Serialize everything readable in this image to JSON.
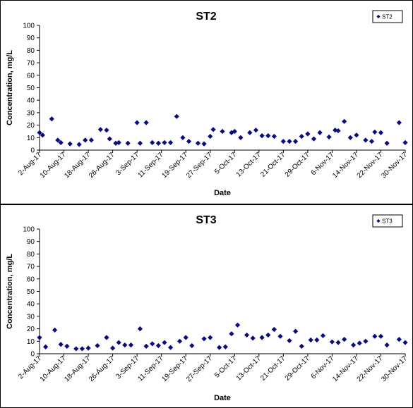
{
  "chart_data": [
    {
      "type": "scatter",
      "title": "ST2",
      "xlabel": "Date",
      "ylabel": "Concentration, mg/L",
      "ylim": [
        0,
        100
      ],
      "yticks": [
        0,
        10,
        20,
        30,
        40,
        50,
        60,
        70,
        80,
        90,
        100
      ],
      "xtick_labels": [
        "2-Aug-17",
        "10-Aug-17",
        "18-Aug-17",
        "26-Aug-17",
        "3-Sep-17",
        "11-Sep-17",
        "19-Sep-17",
        "27-Sep-17",
        "5-Oct-17",
        "13-Oct-17",
        "21-Oct-17",
        "29-Oct-17",
        "6-Nov-17",
        "14-Nov-17",
        "22-Nov-17",
        "30-Nov-17"
      ],
      "grid": false,
      "legend_position": "top-right",
      "marker_color": "#0a0a80",
      "series": [
        {
          "name": "ST2",
          "x": [
            "2-Aug-17",
            "3-Aug-17",
            "6-Aug-17",
            "8-Aug-17",
            "9-Aug-17",
            "12-Aug-17",
            "15-Aug-17",
            "17-Aug-17",
            "19-Aug-17",
            "22-Aug-17",
            "24-Aug-17",
            "25-Aug-17",
            "27-Aug-17",
            "28-Aug-17",
            "31-Aug-17",
            "3-Sep-17",
            "4-Sep-17",
            "6-Sep-17",
            "8-Sep-17",
            "10-Sep-17",
            "12-Sep-17",
            "14-Sep-17",
            "16-Sep-17",
            "18-Sep-17",
            "20-Sep-17",
            "23-Sep-17",
            "25-Sep-17",
            "27-Sep-17",
            "28-Sep-17",
            "1-Oct-17",
            "4-Oct-17",
            "5-Oct-17",
            "7-Oct-17",
            "10-Oct-17",
            "12-Oct-17",
            "14-Oct-17",
            "16-Oct-17",
            "18-Oct-17",
            "21-Oct-17",
            "23-Oct-17",
            "25-Oct-17",
            "27-Oct-17",
            "29-Oct-17",
            "31-Oct-17",
            "2-Nov-17",
            "5-Nov-17",
            "7-Nov-17",
            "8-Nov-17",
            "10-Nov-17",
            "12-Nov-17",
            "14-Nov-17",
            "17-Nov-17",
            "19-Nov-17",
            "20-Nov-17",
            "22-Nov-17",
            "24-Nov-17",
            "28-Nov-17",
            "30-Nov-17"
          ],
          "values": [
            14,
            12,
            25,
            8,
            6,
            5,
            4.5,
            8,
            8,
            16.5,
            16,
            9,
            5.5,
            6,
            5.5,
            22,
            5.5,
            22,
            6,
            5.5,
            6,
            6,
            27,
            10,
            7,
            5.5,
            5,
            11,
            16.5,
            15,
            14,
            15,
            10,
            14,
            16,
            11.5,
            11.5,
            11,
            7,
            7,
            7,
            11,
            13,
            9,
            14,
            10.5,
            16,
            15.5,
            23,
            10,
            12,
            8,
            7,
            14.5,
            14,
            5.5,
            22,
            6
          ]
        }
      ]
    },
    {
      "type": "scatter",
      "title": "ST3",
      "xlabel": "Date",
      "ylabel": "Concentration, mg/L",
      "ylim": [
        0,
        100
      ],
      "yticks": [
        0,
        10,
        20,
        30,
        40,
        50,
        60,
        70,
        80,
        90,
        100
      ],
      "xtick_labels": [
        "2-Aug-17",
        "10-Aug-17",
        "18-Aug-17",
        "26-Aug-17",
        "3-Sep-17",
        "11-Sep-17",
        "19-Sep-17",
        "27-Sep-17",
        "5-Oct-17",
        "13-Oct-17",
        "21-Oct-17",
        "29-Oct-17",
        "6-Nov-17",
        "14-Nov-17",
        "22-Nov-17",
        "30-Nov-17"
      ],
      "grid": false,
      "legend_position": "top-right",
      "marker_color": "#0a0a80",
      "series": [
        {
          "name": "ST3",
          "x": [
            "2-Aug-17",
            "4-Aug-17",
            "7-Aug-17",
            "9-Aug-17",
            "11-Aug-17",
            "14-Aug-17",
            "16-Aug-17",
            "18-Aug-17",
            "21-Aug-17",
            "24-Aug-17",
            "26-Aug-17",
            "28-Aug-17",
            "30-Aug-17",
            "1-Sep-17",
            "4-Sep-17",
            "6-Sep-17",
            "8-Sep-17",
            "10-Sep-17",
            "12-Sep-17",
            "14-Sep-17",
            "17-Sep-17",
            "19-Sep-17",
            "21-Sep-17",
            "25-Sep-17",
            "27-Sep-17",
            "30-Sep-17",
            "2-Oct-17",
            "4-Oct-17",
            "6-Oct-17",
            "9-Oct-17",
            "11-Oct-17",
            "14-Oct-17",
            "16-Oct-17",
            "18-Oct-17",
            "20-Oct-17",
            "23-Oct-17",
            "25-Oct-17",
            "27-Oct-17",
            "30-Oct-17",
            "1-Nov-17",
            "3-Nov-17",
            "6-Nov-17",
            "8-Nov-17",
            "10-Nov-17",
            "13-Nov-17",
            "15-Nov-17",
            "17-Nov-17",
            "20-Nov-17",
            "22-Nov-17",
            "24-Nov-17",
            "28-Nov-17",
            "30-Nov-17"
          ],
          "values": [
            13,
            5.5,
            19,
            7.5,
            6,
            4,
            4,
            4.5,
            6.5,
            13,
            4.5,
            9,
            7,
            7,
            20,
            6,
            8,
            6.5,
            9,
            5,
            10,
            13,
            6.5,
            12,
            13,
            5,
            5.5,
            16,
            23,
            15,
            12.5,
            13,
            15,
            19.5,
            14,
            10.5,
            18,
            6,
            11,
            11,
            14.5,
            9.5,
            9,
            11.5,
            7,
            8.5,
            10,
            14,
            14,
            7,
            11.5,
            9
          ]
        }
      ]
    }
  ]
}
